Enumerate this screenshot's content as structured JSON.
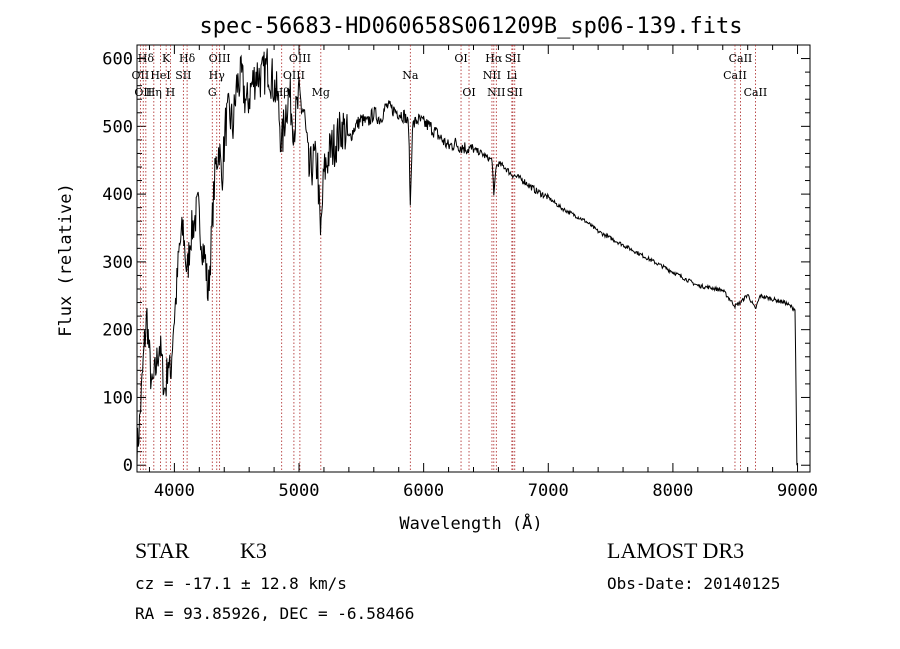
{
  "chart_data": {
    "type": "line",
    "title": "spec-56683-HD060658S061209B_sp06-139.fits",
    "xlabel": "Wavelength (Å)",
    "ylabel": "Flux (relative)",
    "xlim": [
      3700,
      9100
    ],
    "ylim": [
      -10,
      620
    ],
    "xticks": [
      4000,
      5000,
      6000,
      7000,
      8000,
      9000
    ],
    "yticks": [
      0,
      100,
      200,
      300,
      400,
      500,
      600
    ],
    "grid": false,
    "line_color": "#000000",
    "marker_color": "#aa2222",
    "series": [
      {
        "name": "flux",
        "x": [
          3700,
          3720,
          3740,
          3760,
          3780,
          3800,
          3820,
          3850,
          3880,
          3900,
          3920,
          3934,
          3950,
          3968,
          3990,
          4010,
          4040,
          4070,
          4102,
          4130,
          4160,
          4190,
          4220,
          4250,
          4270,
          4290,
          4310,
          4330,
          4360,
          4380,
          4410,
          4440,
          4470,
          4500,
          4540,
          4580,
          4620,
          4660,
          4700,
          4750,
          4800,
          4830,
          4861,
          4890,
          4920,
          4960,
          5000,
          5040,
          5080,
          5120,
          5150,
          5172,
          5183,
          5200,
          5240,
          5300,
          5350,
          5400,
          5450,
          5500,
          5550,
          5600,
          5650,
          5700,
          5750,
          5800,
          5850,
          5880,
          5893,
          5910,
          5950,
          6000,
          6050,
          6100,
          6150,
          6200,
          6250,
          6300,
          6350,
          6400,
          6450,
          6500,
          6550,
          6563,
          6580,
          6600,
          6650,
          6700,
          6750,
          6800,
          6900,
          7000,
          7100,
          7200,
          7300,
          7400,
          7500,
          7600,
          7700,
          7800,
          7900,
          8000,
          8100,
          8200,
          8300,
          8400,
          8498,
          8542,
          8600,
          8662,
          8700,
          8800,
          8900,
          8980,
          8995
        ],
        "y": [
          20,
          60,
          120,
          180,
          220,
          160,
          110,
          140,
          180,
          150,
          110,
          120,
          160,
          130,
          200,
          240,
          320,
          350,
          280,
          340,
          360,
          380,
          330,
          300,
          250,
          310,
          380,
          440,
          470,
          420,
          500,
          520,
          500,
          560,
          570,
          530,
          560,
          580,
          570,
          590,
          560,
          540,
          470,
          520,
          550,
          500,
          540,
          520,
          430,
          450,
          440,
          330,
          370,
          430,
          460,
          480,
          500,
          480,
          500,
          510,
          505,
          520,
          510,
          530,
          525,
          520,
          515,
          500,
          380,
          500,
          510,
          505,
          500,
          490,
          480,
          470,
          475,
          470,
          468,
          465,
          462,
          455,
          450,
          395,
          440,
          445,
          440,
          430,
          425,
          420,
          405,
          395,
          380,
          370,
          360,
          345,
          335,
          325,
          315,
          305,
          295,
          285,
          275,
          265,
          262,
          258,
          235,
          240,
          252,
          230,
          250,
          245,
          240,
          230,
          0
        ]
      }
    ],
    "line_markers": [
      {
        "label": "Hδ",
        "row": 0,
        "wavelength": 3771
      },
      {
        "label": "OII",
        "row": 1,
        "wavelength": 3727
      },
      {
        "label": "OII",
        "row": 2,
        "wavelength": 3750
      },
      {
        "label": "K",
        "row": 0,
        "wavelength": 3934
      },
      {
        "label": "HeI",
        "row": 1,
        "wavelength": 3889
      },
      {
        "label": "Hη",
        "row": 2,
        "wavelength": 3835
      },
      {
        "label": "H",
        "row": 2,
        "wavelength": 3968
      },
      {
        "label": "SII",
        "row": 1,
        "wavelength": 4072
      },
      {
        "label": "Hδ",
        "row": 0,
        "wavelength": 4102
      },
      {
        "label": "OIII",
        "row": 0,
        "wavelength": 4363
      },
      {
        "label": "Hγ",
        "row": 1,
        "wavelength": 4340
      },
      {
        "label": "G",
        "row": 2,
        "wavelength": 4304
      },
      {
        "label": "OIII",
        "row": 0,
        "wavelength": 5007
      },
      {
        "label": "OIII",
        "row": 1,
        "wavelength": 4959
      },
      {
        "label": "Hβ",
        "row": 2,
        "wavelength": 4861
      },
      {
        "label": "Mg",
        "row": 2,
        "wavelength": 5175
      },
      {
        "label": "Na",
        "row": 1,
        "wavelength": 5893
      },
      {
        "label": "OI",
        "row": 0,
        "wavelength": 6300
      },
      {
        "label": "OI",
        "row": 2,
        "wavelength": 6364
      },
      {
        "label": "Hα",
        "row": 0,
        "wavelength": 6563
      },
      {
        "label": "SII",
        "row": 0,
        "wavelength": 6716
      },
      {
        "label": "NII",
        "row": 1,
        "wavelength": 6548
      },
      {
        "label": "Li",
        "row": 1,
        "wavelength": 6708
      },
      {
        "label": "NII",
        "row": 2,
        "wavelength": 6583
      },
      {
        "label": "SII",
        "row": 2,
        "wavelength": 6731
      },
      {
        "label": "CaII",
        "row": 0,
        "wavelength": 8542
      },
      {
        "label": "CaII",
        "row": 1,
        "wavelength": 8498
      },
      {
        "label": "CaII",
        "row": 2,
        "wavelength": 8662
      }
    ]
  },
  "info": {
    "object_class": "STAR",
    "subclass": "K3",
    "survey": "LAMOST DR3",
    "redshift_line": "cz = -17.1 ± 12.8 km/s",
    "obs_date_line": "Obs-Date: 20140125",
    "coords_line": "RA =  93.85926, DEC =  -6.58466"
  }
}
